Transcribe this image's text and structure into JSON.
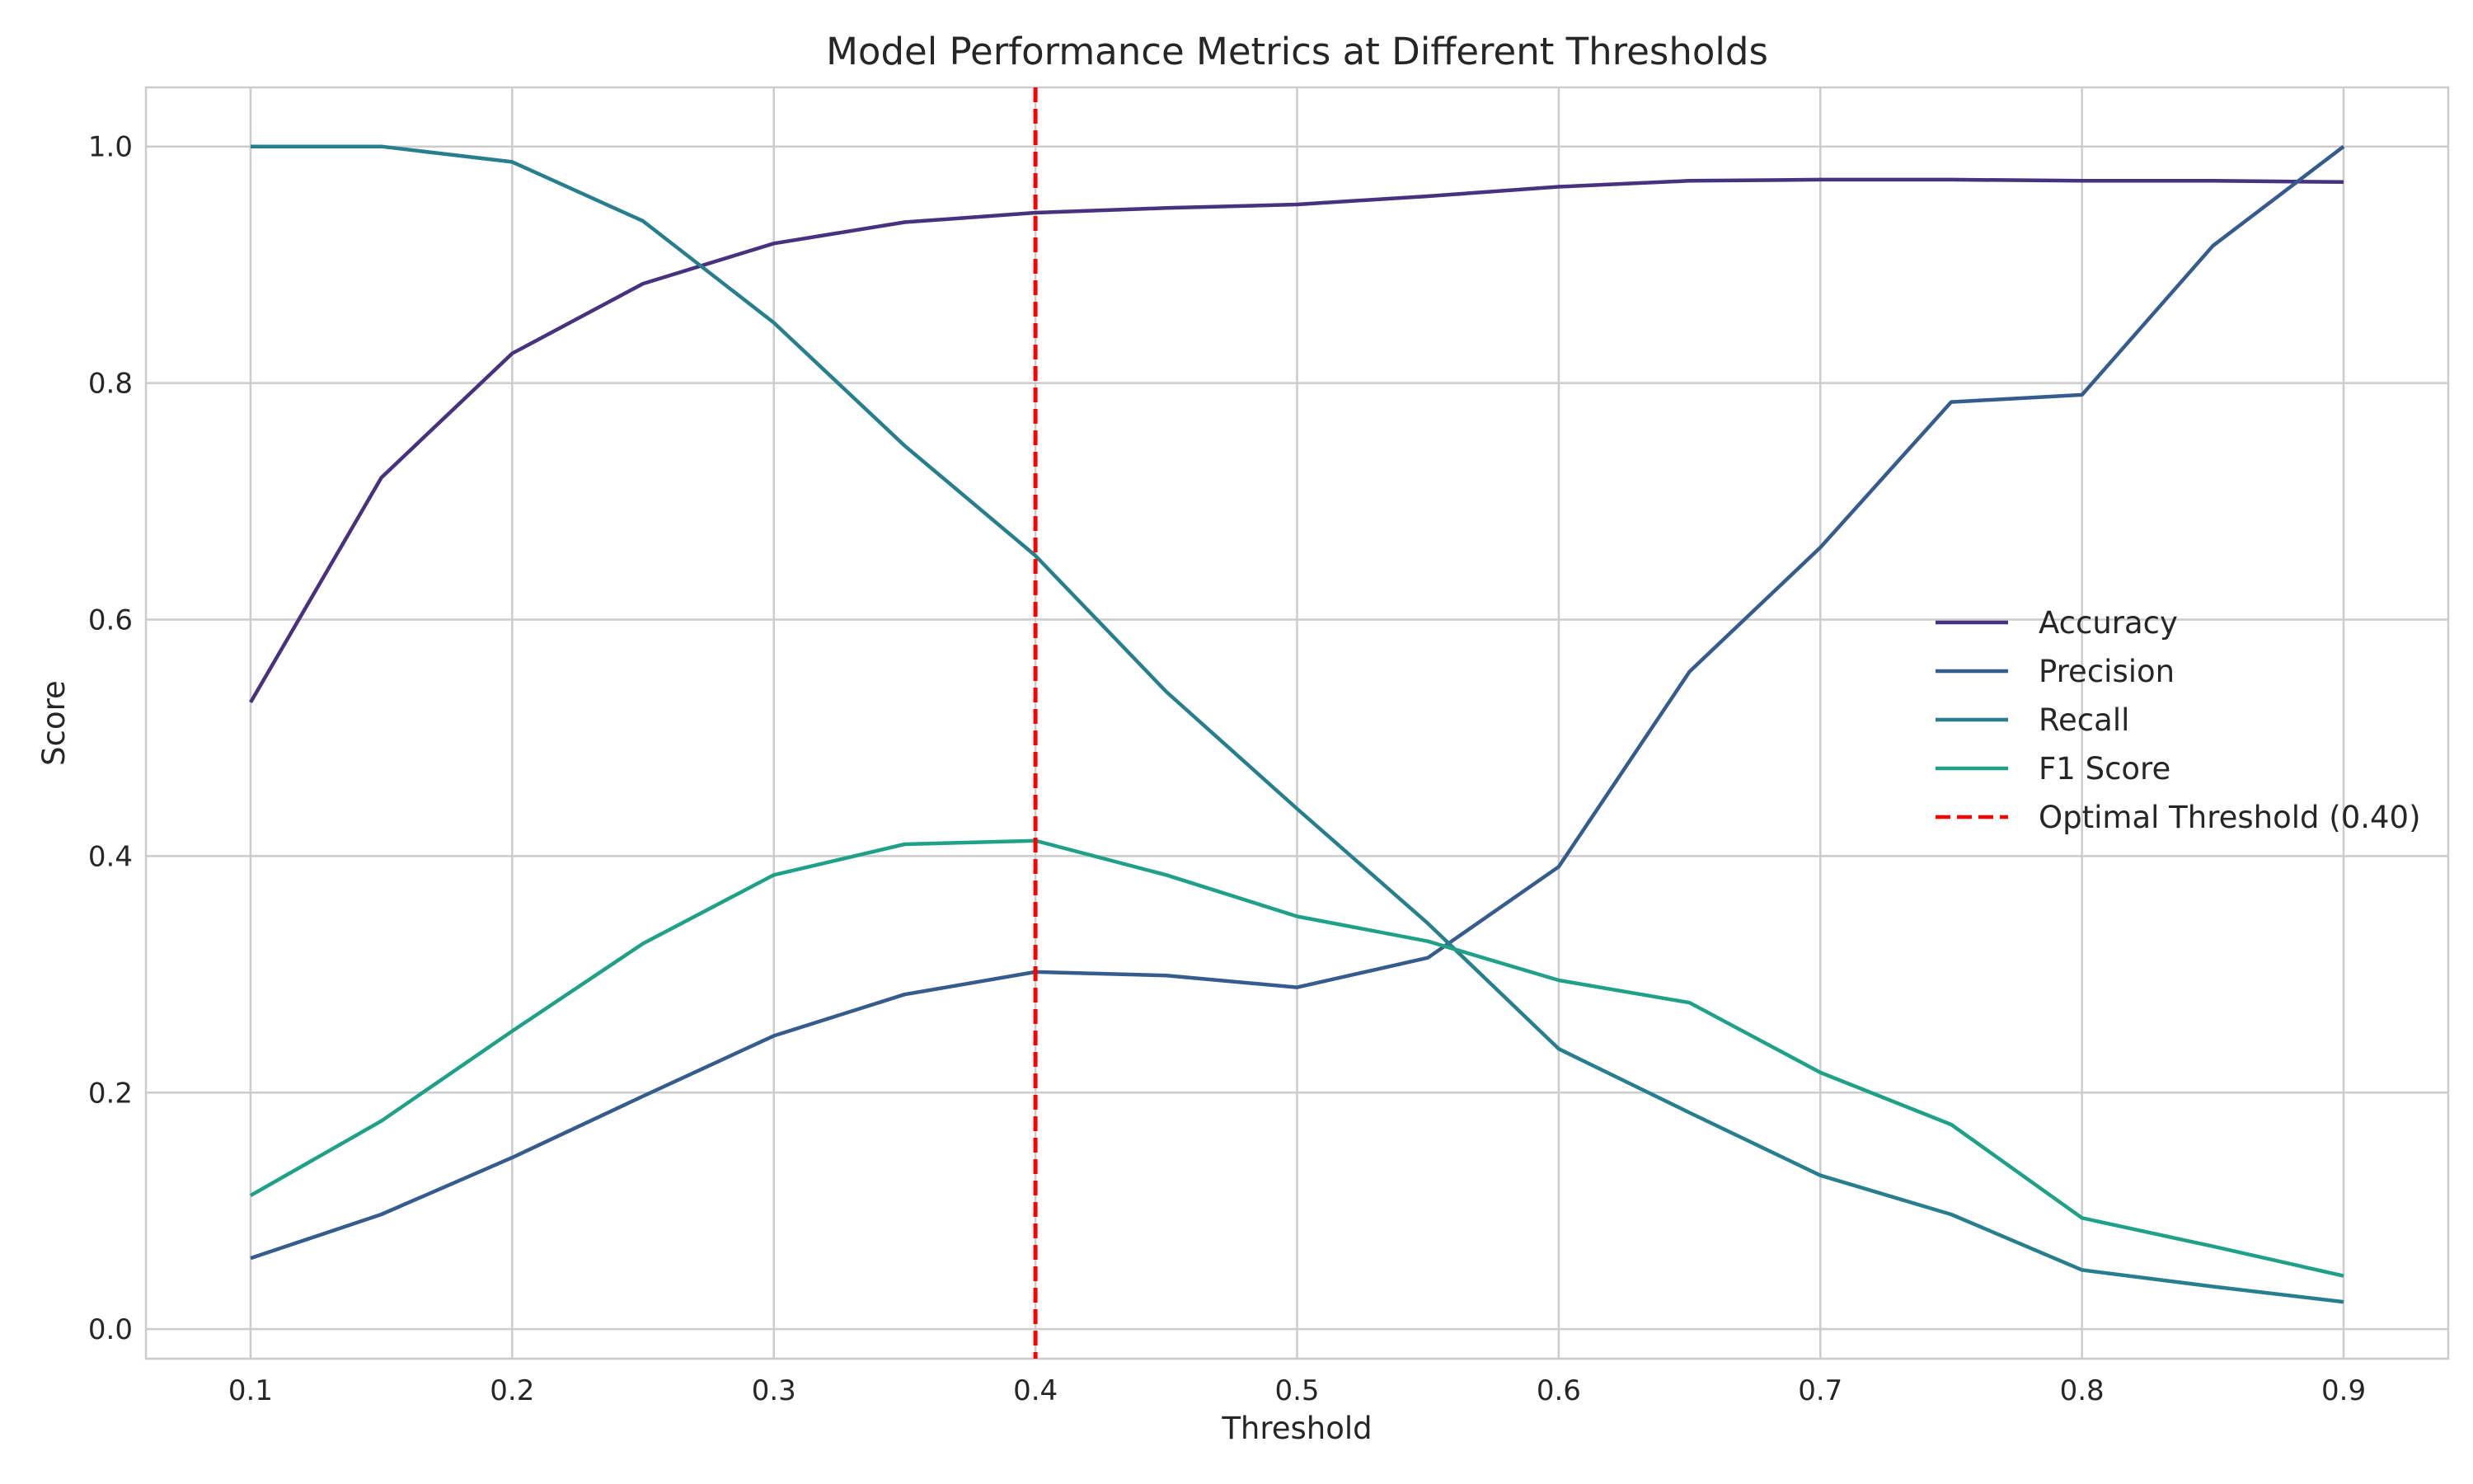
{
  "chart_data": {
    "type": "line",
    "title": "Model Performance Metrics at Different Thresholds",
    "xlabel": "Threshold",
    "ylabel": "Score",
    "xlim": [
      0.06,
      0.94
    ],
    "ylim": [
      -0.025,
      1.05
    ],
    "x_ticks": [
      0.1,
      0.2,
      0.3,
      0.4,
      0.5,
      0.6,
      0.7,
      0.8,
      0.9
    ],
    "x_tick_labels": [
      "0.1",
      "0.2",
      "0.3",
      "0.4",
      "0.5",
      "0.6",
      "0.7",
      "0.8",
      "0.9"
    ],
    "y_ticks": [
      0.0,
      0.2,
      0.4,
      0.6,
      0.8,
      1.0
    ],
    "y_tick_labels": [
      "0.0",
      "0.2",
      "0.4",
      "0.6",
      "0.8",
      "1.0"
    ],
    "grid": true,
    "legend_position": "center-right",
    "x": [
      0.1,
      0.15,
      0.2,
      0.25,
      0.3,
      0.35,
      0.4,
      0.45,
      0.5,
      0.55,
      0.6,
      0.65,
      0.7,
      0.75,
      0.8,
      0.85,
      0.9
    ],
    "series": [
      {
        "name": "Accuracy",
        "color": "#46327e",
        "style": "solid",
        "values": [
          0.53,
          0.72,
          0.825,
          0.884,
          0.918,
          0.936,
          0.944,
          0.948,
          0.951,
          0.958,
          0.966,
          0.971,
          0.972,
          0.972,
          0.971,
          0.971,
          0.97
        ]
      },
      {
        "name": "Precision",
        "color": "#365c8d",
        "style": "solid",
        "values": [
          0.06,
          0.097,
          0.145,
          0.197,
          0.248,
          0.283,
          0.302,
          0.299,
          0.289,
          0.314,
          0.391,
          0.556,
          0.661,
          0.784,
          0.79,
          0.916,
          1.0
        ]
      },
      {
        "name": "Recall",
        "color": "#277f8e",
        "style": "solid",
        "values": [
          1.0,
          1.0,
          0.987,
          0.937,
          0.851,
          0.747,
          0.654,
          0.539,
          0.44,
          0.343,
          0.237,
          0.183,
          0.13,
          0.097,
          0.05,
          0.036,
          0.023
        ]
      },
      {
        "name": "F1 Score",
        "color": "#1fa187",
        "style": "solid",
        "values": [
          0.113,
          0.176,
          0.252,
          0.326,
          0.384,
          0.41,
          0.413,
          0.384,
          0.349,
          0.328,
          0.295,
          0.276,
          0.217,
          0.173,
          0.094,
          0.07,
          0.045
        ]
      }
    ],
    "reference_lines": [
      {
        "name": "Optimal Threshold (0.40)",
        "orientation": "vertical",
        "x": 0.4,
        "color": "#ff0000",
        "style": "dashed"
      }
    ]
  }
}
